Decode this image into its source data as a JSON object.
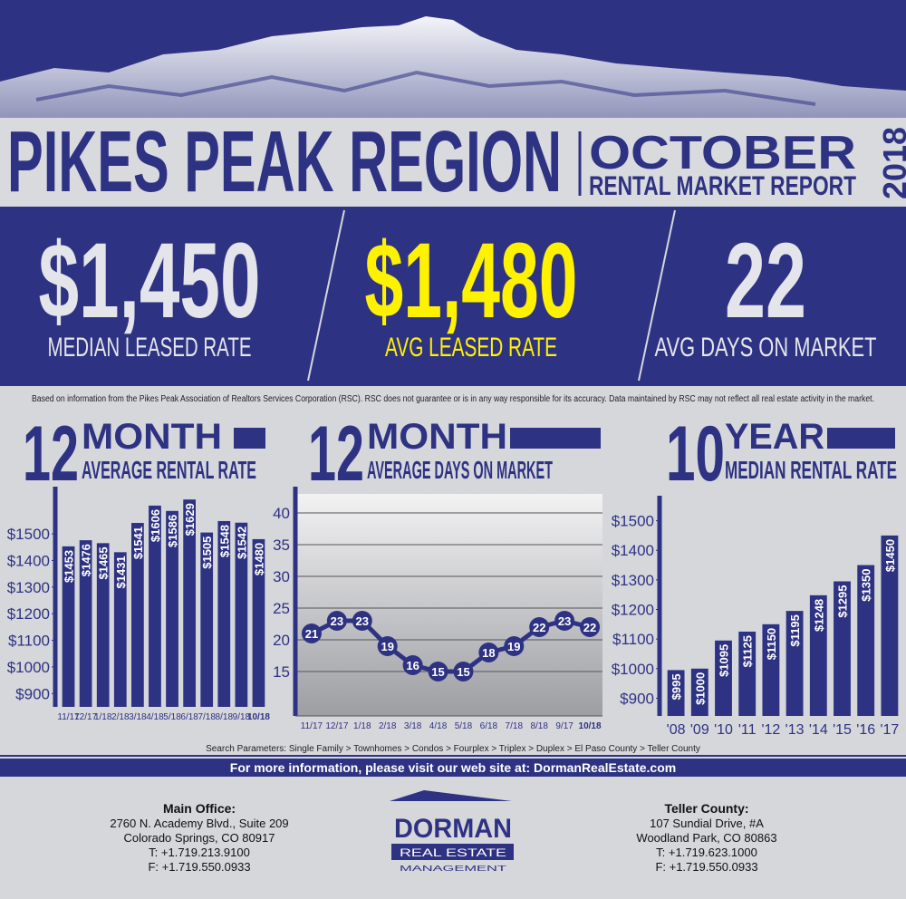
{
  "header": {
    "title": "PIKES PEAK REGION",
    "month": "OCTOBER",
    "subtitle": "RENTAL MARKET REPORT",
    "year": "2018"
  },
  "stats": [
    {
      "value": "$1,450",
      "label": "MEDIAN LEASED RATE",
      "color": "#e4e5ea"
    },
    {
      "value": "$1,480",
      "label": "AVG LEASED RATE",
      "color": "#fff200"
    },
    {
      "value": "22",
      "label": "AVG DAYS ON MARKET",
      "color": "#e4e5ea"
    }
  ],
  "disclaimer": "Based on information from the Pikes Peak Association of Realtors Services Corporation (RSC). RSC does not guarantee or is in any way responsible for its accuracy. Data maintained by RSC may not reflect all real estate activity in the market.",
  "chart_data": [
    {
      "type": "bar",
      "title_number": "12",
      "title_unit": "MONTH",
      "title": "AVERAGE RENTAL RATE",
      "color": "#2e3282",
      "categories": [
        "11/17",
        "12/17",
        "1/18",
        "2/18",
        "3/18",
        "4/18",
        "5/18",
        "6/18",
        "7/18",
        "8/18",
        "9/18",
        "10/18"
      ],
      "values": [
        1453,
        1476,
        1465,
        1431,
        1541,
        1606,
        1586,
        1629,
        1505,
        1548,
        1542,
        1480
      ],
      "value_labels": [
        "$1453",
        "$1476",
        "$1465",
        "$1431",
        "$1541",
        "$1606",
        "$1586",
        "$1629",
        "$1505",
        "$1548",
        "$1542",
        "$1480"
      ],
      "ylim": [
        850,
        1650
      ],
      "yticks": [
        {
          "value": 900,
          "label": "$900"
        },
        {
          "value": 1000,
          "label": "$1000"
        },
        {
          "value": 1100,
          "label": "$1100"
        },
        {
          "value": 1200,
          "label": "$1200"
        },
        {
          "value": 1300,
          "label": "$1300"
        },
        {
          "value": 1400,
          "label": "$1400"
        },
        {
          "value": 1500,
          "label": "$1500"
        }
      ],
      "grid": false
    },
    {
      "type": "line",
      "title_number": "12",
      "title_unit": "MONTH",
      "title": "AVERAGE DAYS ON MARKET",
      "color": "#2e3282",
      "categories": [
        "11/17",
        "12/17",
        "1/18",
        "2/18",
        "3/18",
        "4/18",
        "5/18",
        "6/18",
        "7/18",
        "8/18",
        "9/17",
        "10/18"
      ],
      "values": [
        21,
        23,
        23,
        19,
        16,
        15,
        15,
        18,
        19,
        22,
        23,
        22
      ],
      "ylim": [
        8,
        43
      ],
      "yticks": [
        15,
        20,
        25,
        30,
        35,
        40
      ],
      "grid": true
    },
    {
      "type": "bar",
      "title_number": "10",
      "title_unit": "YEAR",
      "title": "MEDIAN RENTAL RATE",
      "color": "#2e3282",
      "categories": [
        "'08",
        "'09",
        "'10",
        "'11",
        "'12",
        "'13",
        "'14",
        "'15",
        "'16",
        "'17"
      ],
      "values": [
        995,
        1000,
        1095,
        1125,
        1150,
        1195,
        1248,
        1295,
        1350,
        1450
      ],
      "value_labels": [
        "$995",
        "$1000",
        "$1095",
        "$1125",
        "$1150",
        "$1195",
        "$1248",
        "$1295",
        "$1350",
        "$1450"
      ],
      "ylim": [
        840,
        1560
      ],
      "yticks": [
        {
          "value": 900,
          "label": "$900"
        },
        {
          "value": 1000,
          "label": "$1000"
        },
        {
          "value": 1100,
          "label": "$1100"
        },
        {
          "value": 1200,
          "label": "$1200"
        },
        {
          "value": 1300,
          "label": "$1300"
        },
        {
          "value": 1400,
          "label": "$1400"
        },
        {
          "value": 1500,
          "label": "$1500"
        }
      ],
      "grid": false
    }
  ],
  "search_parameters": "Search Parameters: Single Family > Townhomes > Condos > Fourplex > Triplex > Duplex > El Paso County > Teller County",
  "banner": "For more information, please visit our web site at: DormanRealEstate.com",
  "offices": [
    {
      "title": "Main Office:",
      "lines": [
        "2760 N. Academy Blvd.,  Suite 209",
        "Colorado Springs, CO 80917",
        "T: +1.719.213.9100",
        "F: +1.719.550.0933"
      ]
    },
    {
      "title": "Teller County:",
      "lines": [
        "107 Sundial Drive, #A",
        "Woodland Park, CO 80863",
        "T: +1.719.623.1000",
        "F: +1.719.550.0933"
      ]
    }
  ],
  "logo": {
    "name": "DORMAN",
    "line1": "REAL ESTATE",
    "line2": "MANAGEMENT"
  }
}
